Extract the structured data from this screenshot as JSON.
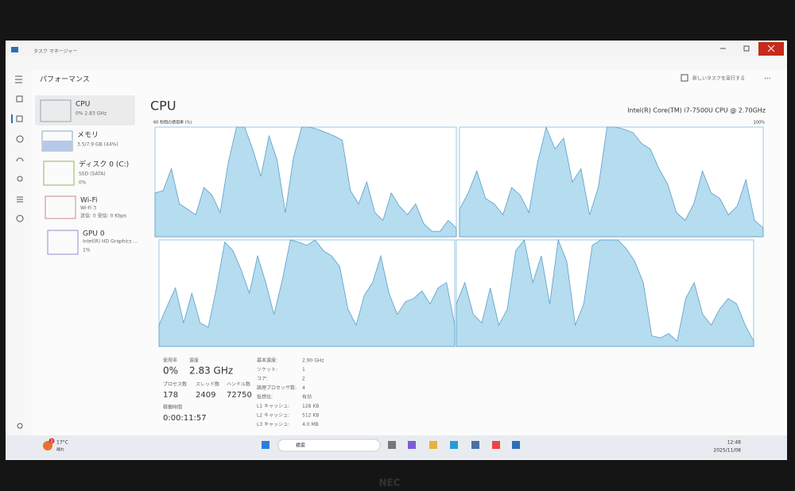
{
  "window": {
    "title": "タスク マネージャー"
  },
  "header": {
    "title": "パフォーマンス",
    "run_task": "新しいタスクを実行する"
  },
  "sidebar": [
    {
      "name": "CPU",
      "detail": "0% 2.83 GHz"
    },
    {
      "name": "メモリ",
      "detail": "3.5/7.9 GB (44%)"
    },
    {
      "name": "ディスク 0 (C:)",
      "detail": "SSD (SATA)",
      "detail2": "0%"
    },
    {
      "name": "Wi-Fi",
      "detail": "Wi-Fi 3",
      "detail2": "送信: 0 受信: 0 Kbps"
    },
    {
      "name": "GPU 0",
      "detail": "Intel(R) HD Graphics ...",
      "detail2": "1%"
    }
  ],
  "cpu": {
    "title": "CPU",
    "model": "Intel(R) Core(TM) i7-7500U CPU @ 2.70GHz",
    "graph_label": "60 秒間の使用率 (%)",
    "graph_max": "100%",
    "graphs": {
      "ylim": [
        0,
        100
      ],
      "series": [
        {
          "values": [
            40,
            42,
            62,
            30,
            25,
            20,
            45,
            38,
            22,
            68,
            100,
            100,
            80,
            55,
            92,
            70,
            22,
            72,
            100,
            100,
            98,
            95,
            92,
            88,
            42,
            30,
            50,
            22,
            15,
            40,
            28,
            20,
            30,
            12,
            5,
            5,
            15,
            8
          ]
        },
        {
          "values": [
            25,
            40,
            60,
            35,
            30,
            20,
            45,
            38,
            22,
            68,
            100,
            80,
            90,
            50,
            62,
            20,
            45,
            100,
            100,
            98,
            95,
            85,
            80,
            62,
            48,
            22,
            15,
            30,
            60,
            40,
            35,
            20,
            28,
            52,
            15,
            8
          ]
        },
        {
          "values": [
            20,
            38,
            55,
            22,
            50,
            22,
            18,
            55,
            98,
            90,
            72,
            50,
            85,
            60,
            30,
            62,
            100,
            98,
            95,
            100,
            90,
            85,
            75,
            35,
            20,
            48,
            60,
            85,
            50,
            30,
            42,
            45,
            52,
            40,
            55,
            60,
            20
          ]
        },
        {
          "values": [
            40,
            60,
            30,
            22,
            55,
            20,
            35,
            90,
            100,
            60,
            85,
            40,
            100,
            80,
            20,
            40,
            95,
            100,
            100,
            100,
            92,
            80,
            60,
            10,
            8,
            12,
            5,
            45,
            60,
            30,
            20,
            35,
            45,
            40,
            20,
            5
          ]
        }
      ]
    }
  },
  "stats": [
    {
      "label": "使用率",
      "value": "0%"
    },
    {
      "label": "速度",
      "value": "2.83 GHz"
    },
    {
      "label": "プロセス数",
      "value": "178"
    },
    {
      "label": "スレッド数",
      "value": "2409"
    },
    {
      "label": "ハンドル数",
      "value": "72750"
    },
    {
      "label": "稼働時間",
      "value": "0:00:11:57"
    }
  ],
  "specs": [
    {
      "label": "基本速度:",
      "value": "2.90 GHz"
    },
    {
      "label": "ソケット:",
      "value": "1"
    },
    {
      "label": "コア:",
      "value": "2"
    },
    {
      "label": "論理プロセッサ数:",
      "value": "4"
    },
    {
      "label": "仮想化:",
      "value": "有効"
    },
    {
      "label": "L1 キャッシュ:",
      "value": "128 KB"
    },
    {
      "label": "L2 キャッシュ:",
      "value": "512 KB"
    },
    {
      "label": "L3 キャッシュ:",
      "value": "4.0 MB"
    }
  ],
  "taskbar": {
    "badge": "2",
    "temperature": "17°C",
    "weather": "晴れ",
    "search": "検索",
    "time": "12:48",
    "date": "2025/11/08"
  },
  "brand": "NEC"
}
